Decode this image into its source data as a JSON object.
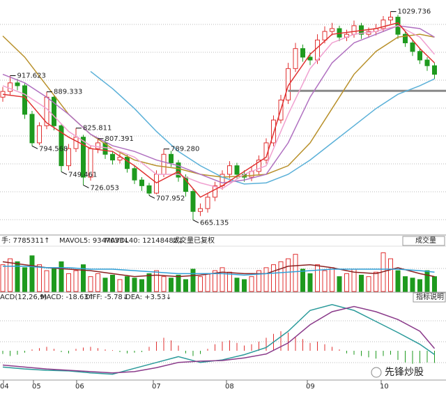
{
  "chart_data": {
    "type": "candlestick",
    "ylim": [
      640,
      1050
    ],
    "candles": [
      [
        880,
        890,
        898,
        872
      ],
      [
        890,
        905,
        917.623,
        884
      ],
      [
        905,
        900,
        912,
        892
      ],
      [
        900,
        850,
        904,
        842
      ],
      [
        850,
        800,
        856,
        794.568
      ],
      [
        800,
        830,
        836,
        796
      ],
      [
        830,
        880,
        889.333,
        824
      ],
      [
        880,
        830,
        884,
        822
      ],
      [
        830,
        760,
        834,
        749.461
      ],
      [
        760,
        790,
        798,
        752
      ],
      [
        790,
        810,
        825.811,
        784
      ],
      [
        810,
        740,
        814,
        726.053
      ],
      [
        740,
        790,
        796,
        734
      ],
      [
        790,
        800,
        807.391,
        782
      ],
      [
        800,
        780,
        806,
        772
      ],
      [
        780,
        770,
        786,
        762
      ],
      [
        770,
        775,
        782,
        764
      ],
      [
        775,
        755,
        780,
        748
      ],
      [
        755,
        735,
        760,
        728
      ],
      [
        735,
        725,
        740,
        716
      ],
      [
        725,
        712,
        730,
        707.952
      ],
      [
        712,
        745,
        752,
        710
      ],
      [
        745,
        780,
        789.28,
        740
      ],
      [
        780,
        765,
        786,
        758
      ],
      [
        765,
        740,
        770,
        732
      ],
      [
        740,
        715,
        745,
        706
      ],
      [
        715,
        680,
        720,
        665.135
      ],
      [
        680,
        685,
        694,
        672
      ],
      [
        685,
        705,
        712,
        678
      ],
      [
        705,
        725,
        732,
        698
      ],
      [
        725,
        745,
        752,
        718
      ],
      [
        745,
        760,
        768,
        738
      ],
      [
        760,
        745,
        765,
        738
      ],
      [
        745,
        740,
        752,
        732
      ],
      [
        740,
        750,
        758,
        733
      ],
      [
        750,
        770,
        778,
        744
      ],
      [
        770,
        800,
        808,
        764
      ],
      [
        800,
        840,
        848,
        794
      ],
      [
        840,
        875,
        884,
        834
      ],
      [
        875,
        930,
        940,
        868
      ],
      [
        930,
        965,
        975,
        924
      ],
      [
        965,
        950,
        972,
        942
      ],
      [
        950,
        945,
        958,
        936
      ],
      [
        945,
        980,
        990,
        938
      ],
      [
        980,
        995,
        1004,
        974
      ],
      [
        995,
        1000,
        1010,
        988
      ],
      [
        1000,
        985,
        1005,
        978
      ],
      [
        985,
        990,
        998,
        978
      ],
      [
        990,
        1005,
        1014,
        984
      ],
      [
        1005,
        990,
        1010,
        982
      ],
      [
        990,
        995,
        1002,
        984
      ],
      [
        995,
        1000,
        1008,
        988
      ],
      [
        1000,
        1015,
        1022,
        994
      ],
      [
        1015,
        1020,
        1029.736,
        1008
      ],
      [
        1020,
        990,
        1024,
        982
      ],
      [
        990,
        975,
        996,
        968
      ],
      [
        975,
        960,
        980,
        952
      ],
      [
        960,
        945,
        966,
        938
      ],
      [
        945,
        935,
        950,
        926
      ],
      [
        935,
        920,
        940,
        912
      ]
    ],
    "up_color": "#e03030",
    "down_color": "#1e9a1e",
    "annotations": [
      {
        "value": 917.623,
        "label": "917.623"
      },
      {
        "value": 889.333,
        "label": "889.333"
      },
      {
        "value": 794.568,
        "label": "794.568"
      },
      {
        "value": 825.811,
        "label": "825.811"
      },
      {
        "value": 749.461,
        "label": "749.461"
      },
      {
        "value": 807.391,
        "label": "807.391"
      },
      {
        "value": 726.053,
        "label": "726.053"
      },
      {
        "value": 789.28,
        "label": "789.280"
      },
      {
        "value": 707.952,
        "label": "707.952"
      },
      {
        "value": 665.135,
        "label": "665.135"
      },
      {
        "value": 1029.736,
        "label": "1029.736"
      }
    ],
    "reference_line": 891,
    "ma_x": [
      0,
      3,
      6,
      9,
      12,
      15,
      18,
      21,
      24,
      27,
      30,
      33,
      36,
      39,
      42,
      45,
      48,
      51,
      54,
      57,
      59
    ],
    "ma_series": [
      {
        "color": "#b8902a",
        "values": [
          987,
          950,
          900,
          850,
          815,
          790,
          770,
          760,
          755,
          745,
          740,
          742,
          745,
          760,
          800,
          860,
          920,
          960,
          985,
          990,
          985
        ]
      },
      {
        "color": "#5ab0d8",
        "values": [
          null,
          null,
          null,
          null,
          925,
          895,
          860,
          820,
          785,
          760,
          740,
          728,
          730,
          745,
          770,
          800,
          830,
          860,
          885,
          900,
          912
        ]
      },
      {
        "color": "#b070c0",
        "values": [
          920,
          905,
          880,
          850,
          815,
          795,
          785,
          770,
          760,
          745,
          730,
          735,
          745,
          800,
          880,
          940,
          975,
          990,
          1005,
          1000,
          985
        ]
      },
      {
        "color": "#f0a0d0",
        "values": [
          900,
          885,
          860,
          820,
          795,
          790,
          775,
          745,
          745,
          730,
          720,
          745,
          760,
          850,
          930,
          975,
          990,
          995,
          1005,
          985,
          955
        ]
      },
      {
        "color": "#e03030",
        "values": [
          885,
          880,
          835,
          810,
          790,
          785,
          760,
          730,
          750,
          705,
          725,
          750,
          775,
          900,
          955,
          990,
          995,
          1000,
          1010,
          965,
          940
        ]
      }
    ],
    "volume_header": [
      "手: 7785311↑",
      "MAVOL5: 9347033↓",
      "MAVOL40: 12148482↓",
      "成交量已复权"
    ],
    "volume_button": "成交量",
    "vlim": [
      0,
      30
    ],
    "volumes": [
      18,
      22,
      20,
      16,
      24,
      18,
      14,
      16,
      20,
      12,
      14,
      18,
      10,
      12,
      9,
      11,
      8,
      10,
      9,
      8,
      12,
      14,
      10,
      9,
      11,
      8,
      15,
      10,
      12,
      14,
      16,
      13,
      9,
      8,
      10,
      14,
      16,
      18,
      20,
      22,
      25,
      15,
      12,
      18,
      14,
      16,
      10,
      12,
      15,
      11,
      10,
      13,
      26,
      22,
      14,
      10,
      9,
      8,
      14,
      10
    ],
    "volume_ma": [
      {
        "color": "#8b2020",
        "values": [
          20,
          18,
          16,
          15,
          14,
          12,
          10,
          11,
          10,
          11,
          13,
          12,
          12,
          17,
          18,
          16,
          13,
          12,
          16,
          12,
          10
        ]
      },
      {
        "color": "#30a0d8",
        "values": [
          17,
          17,
          16,
          16,
          15,
          15,
          14,
          13,
          12,
          12,
          12,
          11,
          12,
          13,
          14,
          15,
          15,
          15,
          15,
          14,
          13
        ]
      }
    ],
    "macd_header": [
      "ACD(12,26,9)",
      "MACD: -18.63↑",
      "DIFF: -5.78↓",
      "DEA: +3.53↓"
    ],
    "macd_button": "指标说明",
    "mlim": [
      -45,
      75
    ],
    "macd": [
      -5,
      -8,
      -6,
      -3,
      2,
      4,
      6,
      3,
      -2,
      -4,
      3,
      5,
      6,
      4,
      2,
      1,
      -2,
      -4,
      -3,
      -2,
      6,
      14,
      20,
      16,
      8,
      -4,
      -8,
      -5,
      3,
      10,
      14,
      16,
      12,
      8,
      10,
      14,
      20,
      26,
      30,
      28,
      22,
      18,
      12,
      14,
      10,
      6,
      2,
      -4,
      -6,
      -8,
      -10,
      -12,
      -8,
      -6,
      -14,
      -18,
      -20,
      -19,
      -18,
      -18.63
    ],
    "diff": {
      "color": "#2a9a9a",
      "values": [
        -25,
        -28,
        -30,
        -31,
        -34,
        -36,
        -27,
        -18,
        -9,
        -18,
        -14,
        -6,
        5,
        30,
        62,
        71,
        62,
        45,
        28,
        10,
        -5.78
      ]
    },
    "dea": {
      "color": "#8a3a8a",
      "values": [
        -22,
        -25,
        -28,
        -30,
        -32,
        -34,
        -32,
        -26,
        -18,
        -16,
        -15,
        -11,
        -5,
        12,
        40,
        60,
        68,
        60,
        48,
        30,
        3.53
      ]
    },
    "months": [
      "04",
      "05",
      "06",
      "07",
      "08",
      "09",
      "10"
    ],
    "watermark": "先锋炒股"
  }
}
